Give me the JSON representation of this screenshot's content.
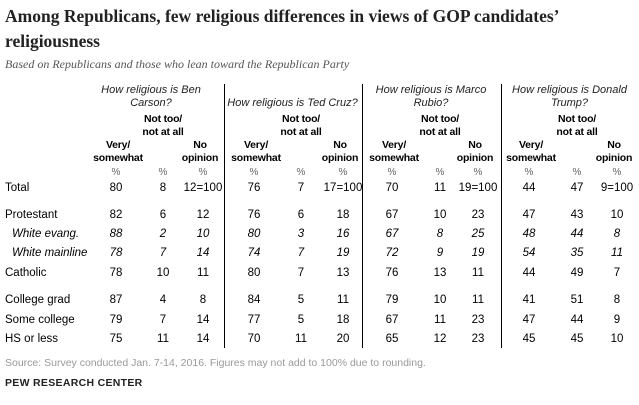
{
  "title": "Among Republicans, few religious differences in views of GOP candidates’ religiousness",
  "subtitle": "Based on Republicans and those who lean toward the Republican Party",
  "chart_data": {
    "type": "table",
    "groups": [
      {
        "question": "How religious is Ben Carson?"
      },
      {
        "question": "How religious is Ted Cruz?"
      },
      {
        "question": "How religious is Marco Rubio?"
      },
      {
        "question": "How religious is Donald Trump?"
      }
    ],
    "column_headers": [
      "Very/ somewhat",
      "Not too/ not at all",
      "No opinion"
    ],
    "unit": "%",
    "rows": [
      {
        "label": "Total",
        "italic": false,
        "values": [
          "80",
          "8",
          "12=100",
          "76",
          "7",
          "17=100",
          "70",
          "11",
          "19=100",
          "44",
          "47",
          "9=100"
        ]
      },
      {
        "label": "Protestant",
        "italic": false,
        "values": [
          "82",
          "6",
          "12",
          "76",
          "6",
          "18",
          "67",
          "10",
          "23",
          "47",
          "43",
          "10"
        ]
      },
      {
        "label": "White evang.",
        "italic": true,
        "values": [
          "88",
          "2",
          "10",
          "80",
          "3",
          "16",
          "67",
          "8",
          "25",
          "48",
          "44",
          "8"
        ]
      },
      {
        "label": "White mainline",
        "italic": true,
        "values": [
          "78",
          "7",
          "14",
          "74",
          "7",
          "19",
          "72",
          "9",
          "19",
          "54",
          "35",
          "11"
        ]
      },
      {
        "label": "Catholic",
        "italic": false,
        "values": [
          "78",
          "10",
          "11",
          "80",
          "7",
          "13",
          "76",
          "13",
          "11",
          "44",
          "49",
          "7"
        ]
      },
      {
        "label": "College grad",
        "italic": false,
        "values": [
          "87",
          "4",
          "8",
          "84",
          "5",
          "11",
          "79",
          "10",
          "11",
          "41",
          "51",
          "8"
        ]
      },
      {
        "label": "Some college",
        "italic": false,
        "values": [
          "79",
          "7",
          "14",
          "77",
          "5",
          "18",
          "67",
          "11",
          "23",
          "47",
          "44",
          "9"
        ]
      },
      {
        "label": "HS or less",
        "italic": false,
        "values": [
          "75",
          "11",
          "14",
          "70",
          "11",
          "20",
          "65",
          "12",
          "23",
          "45",
          "45",
          "10"
        ]
      }
    ]
  },
  "source": "Source: Survey conducted Jan. 7-14, 2016. Figures may not add to 100% due to rounding.",
  "org": "PEW RESEARCH CENTER"
}
